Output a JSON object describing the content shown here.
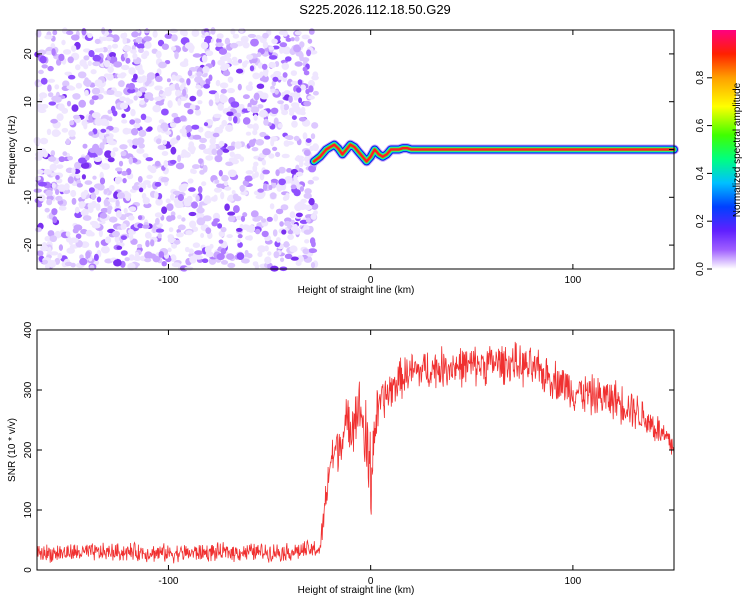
{
  "title": "S225.2026.112.18.50.G29",
  "chart_data": [
    {
      "type": "heatmap",
      "xlabel": "Height of straight line (km)",
      "ylabel": "Frequency (Hz)",
      "xlim": [
        -165,
        150
      ],
      "ylim": [
        -25,
        25
      ],
      "xticks": [
        -100,
        0,
        100
      ],
      "xtick_labels": [
        "-100",
        "0",
        "100"
      ],
      "yticks": [
        -20,
        -10,
        0,
        10,
        20
      ],
      "ytick_labels": [
        "-20",
        "-10",
        "0",
        "10",
        "20"
      ],
      "noise_region_x": [
        -165,
        -27
      ],
      "signal_trace": {
        "x": [
          -28,
          -25,
          -22,
          -20,
          -18,
          -16,
          -14,
          -12,
          -10,
          -8,
          -6,
          -4,
          -2,
          0,
          2,
          4,
          6,
          8,
          10,
          12,
          14,
          16,
          18,
          20,
          40,
          60,
          80,
          100,
          120,
          150
        ],
        "freq": [
          -2.5,
          -1.5,
          0,
          0.5,
          1,
          0.2,
          -1,
          0,
          1,
          0.5,
          -0.5,
          -1.5,
          -2.5,
          -1.5,
          0,
          -1,
          -1.5,
          -1,
          0,
          0,
          0,
          0.3,
          0.3,
          0,
          0,
          0,
          0,
          0,
          0,
          0
        ]
      },
      "colorbar": {
        "label": "Normalized spectral amplitude",
        "range": [
          0,
          1
        ],
        "ticks": [
          0,
          0.2,
          0.4,
          0.6,
          0.8
        ],
        "tick_labels": [
          "0.0",
          "0.2",
          "0.4",
          "0.6",
          "0.8"
        ],
        "colormap": [
          "#ffffff",
          "#a060ff",
          "#6020ff",
          "#0040ff",
          "#00c0ff",
          "#00ff80",
          "#40ff00",
          "#ffff00",
          "#ffa000",
          "#ff2000",
          "#ff0080"
        ]
      }
    },
    {
      "type": "line",
      "xlabel": "Height of straight line (km)",
      "ylabel": "SNR (10 * v/v)",
      "xlim": [
        -165,
        150
      ],
      "ylim": [
        0,
        400
      ],
      "xticks": [
        -100,
        0,
        100
      ],
      "xtick_labels": [
        "-100",
        "0",
        "100"
      ],
      "yticks": [
        0,
        100,
        200,
        300,
        400
      ],
      "ytick_labels": [
        "0",
        "100",
        "200",
        "300",
        "400"
      ],
      "series": [
        {
          "name": "SNR",
          "color": "#f03030",
          "x": [
            -165,
            -140,
            -120,
            -100,
            -80,
            -60,
            -40,
            -25,
            -22,
            -20,
            -15,
            -10,
            -5,
            0,
            2,
            5,
            10,
            15,
            20,
            30,
            40,
            50,
            60,
            70,
            80,
            90,
            100,
            110,
            120,
            130,
            140,
            150
          ],
          "mean": [
            28,
            29,
            30,
            28,
            29,
            30,
            30,
            35,
            120,
            180,
            215,
            250,
            270,
            150,
            240,
            280,
            300,
            320,
            330,
            335,
            340,
            340,
            345,
            345,
            335,
            320,
            300,
            290,
            285,
            270,
            240,
            205
          ],
          "spread": [
            18,
            18,
            18,
            18,
            18,
            18,
            18,
            20,
            40,
            45,
            50,
            60,
            60,
            120,
            60,
            45,
            40,
            40,
            40,
            40,
            40,
            40,
            40,
            40,
            40,
            40,
            40,
            40,
            40,
            40,
            35,
            30
          ]
        }
      ]
    }
  ]
}
